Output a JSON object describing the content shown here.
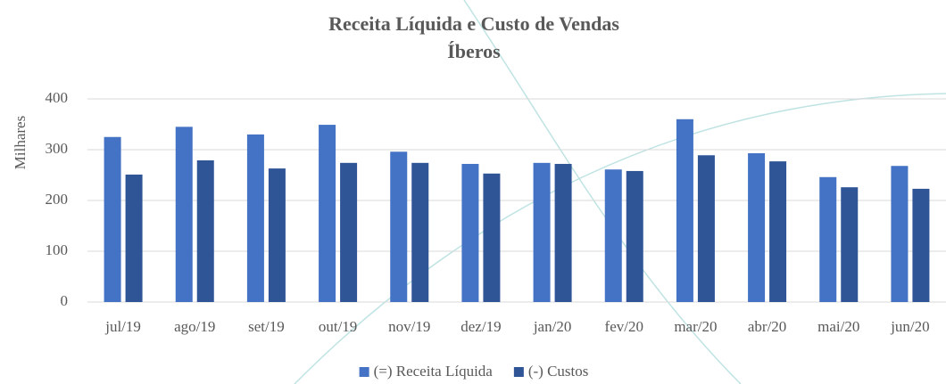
{
  "chart_data": {
    "type": "bar",
    "title": "Receita Líquida e Custo de Vendas",
    "subtitle": "Íberos",
    "y_label": "Milhares",
    "categories": [
      "jul/19",
      "ago/19",
      "set/19",
      "out/19",
      "nov/19",
      "dez/19",
      "jan/20",
      "fev/20",
      "mar/20",
      "abr/20",
      "mai/20",
      "jun/20"
    ],
    "series": [
      {
        "name": "(=) Receita Líquida",
        "color": "#4472c4",
        "values": [
          325,
          345,
          330,
          349,
          296,
          272,
          274,
          261,
          360,
          293,
          246,
          268
        ]
      },
      {
        "name": "(-) Custos",
        "color": "#2f5597",
        "values": [
          251,
          279,
          263,
          274,
          274,
          253,
          272,
          258,
          289,
          277,
          226,
          223
        ]
      }
    ],
    "ylim": [
      0,
      400
    ],
    "yticks": [
      0,
      100,
      200,
      300,
      400
    ],
    "grid": true,
    "legend": "bottom"
  }
}
